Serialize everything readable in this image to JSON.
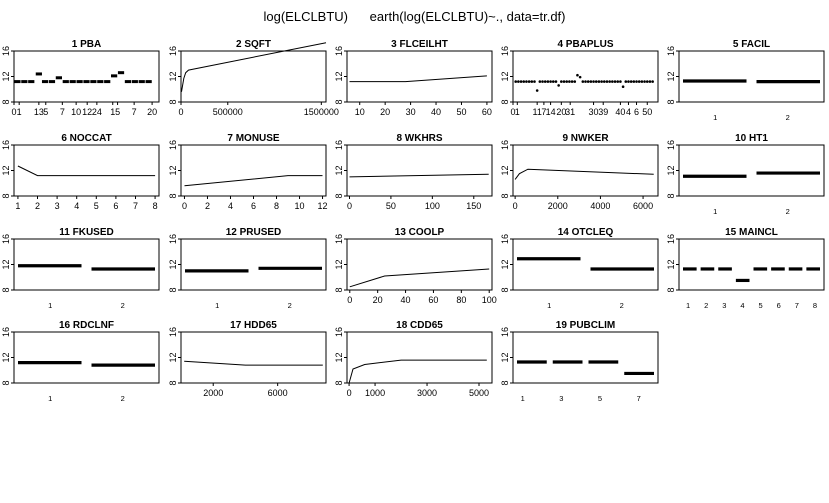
{
  "title": "log(ELCLBTU)      earth(log(ELCLBTU)~., data=tr.df)",
  "chart_data": [
    {
      "type": "scatter",
      "title": "1  PBA",
      "xlim": [
        0,
        21
      ],
      "ylim": [
        8,
        16
      ],
      "xticks": [
        {
          "v": 0,
          "t": "0"
        },
        {
          "v": 0.75,
          "t": "1"
        },
        {
          "v": 3.6,
          "t": "13"
        },
        {
          "v": 4.6,
          "t": "5"
        },
        {
          "v": 7,
          "t": "7"
        },
        {
          "v": 9,
          "t": "10"
        },
        {
          "v": 10.6,
          "t": "12"
        },
        {
          "v": 12,
          "t": "24"
        },
        {
          "v": 14.3,
          "t": "1"
        },
        {
          "v": 15,
          "t": "5"
        },
        {
          "v": 17.4,
          "t": "7"
        },
        {
          "v": 20,
          "t": "20"
        }
      ],
      "yticks": [
        8,
        12,
        16
      ],
      "marker": "dash",
      "x": [
        0.5,
        1.5,
        2.5,
        3.6,
        4.5,
        5.5,
        6.5,
        7.5,
        8.5,
        9.5,
        10.5,
        11.5,
        12.5,
        13.5,
        14.5,
        15.5,
        16.5,
        17.5,
        18.5,
        19.5
      ],
      "y": [
        11.2,
        11.2,
        11.2,
        12.4,
        11.2,
        11.2,
        11.8,
        11.2,
        11.2,
        11.2,
        11.2,
        11.2,
        11.2,
        11.2,
        12.1,
        12.6,
        11.2,
        11.2,
        11.2,
        11.2
      ]
    },
    {
      "type": "line",
      "title": "2  SQFT",
      "xlim": [
        0,
        1550000
      ],
      "ylim": [
        8,
        16
      ],
      "xticks": [
        {
          "v": 0,
          "t": "0"
        },
        {
          "v": 500000,
          "t": "500000"
        },
        {
          "v": 1500000,
          "t": "1500000"
        }
      ],
      "yticks": [
        8,
        12,
        16
      ],
      "x": [
        5000,
        30000,
        50000,
        80000,
        1550000
      ],
      "y": [
        9.6,
        11.7,
        12.6,
        13.0,
        17.3
      ]
    },
    {
      "type": "line",
      "title": "3  FLCEILHT",
      "xlim": [
        5,
        62
      ],
      "ylim": [
        8,
        16
      ],
      "xticks": [
        {
          "v": 10,
          "t": "10"
        },
        {
          "v": 20,
          "t": "20"
        },
        {
          "v": 30,
          "t": "30"
        },
        {
          "v": 40,
          "t": "40"
        },
        {
          "v": 50,
          "t": "50"
        },
        {
          "v": 60,
          "t": "60"
        }
      ],
      "yticks": [
        8,
        12,
        16
      ],
      "x": [
        6,
        28,
        60
      ],
      "y": [
        11.2,
        11.2,
        12.1
      ]
    },
    {
      "type": "scatter",
      "title": "4  PBAPLUS",
      "xlim": [
        0,
        54
      ],
      "ylim": [
        8,
        16
      ],
      "xticks": [
        {
          "v": 0,
          "t": "0"
        },
        {
          "v": 1.6,
          "t": "1"
        },
        {
          "v": 9,
          "t": "11"
        },
        {
          "v": 11.5,
          "t": "7"
        },
        {
          "v": 14,
          "t": "14"
        },
        {
          "v": 18,
          "t": "20"
        },
        {
          "v": 21.3,
          "t": "31"
        },
        {
          "v": 30,
          "t": "30"
        },
        {
          "v": 33.6,
          "t": "39"
        },
        {
          "v": 40,
          "t": "40"
        },
        {
          "v": 43,
          "t": "4"
        },
        {
          "v": 46,
          "t": "6"
        },
        {
          "v": 50,
          "t": "50"
        }
      ],
      "yticks": [
        8,
        12,
        16
      ],
      "marker": "dot",
      "x": [
        1,
        2,
        3,
        4,
        5,
        6,
        7,
        8,
        9,
        10,
        11,
        12,
        13,
        14,
        15,
        16,
        17,
        18,
        19,
        20,
        21,
        22,
        23,
        24,
        25,
        26,
        27,
        28,
        29,
        30,
        31,
        32,
        33,
        34,
        35,
        36,
        37,
        38,
        39,
        40,
        41,
        42,
        43,
        44,
        45,
        46,
        47,
        48,
        49,
        50,
        51,
        52
      ],
      "y": [
        11.2,
        11.2,
        11.2,
        11.2,
        11.2,
        11.2,
        11.2,
        11.2,
        9.8,
        11.2,
        11.2,
        11.2,
        11.2,
        11.2,
        11.2,
        11.2,
        10.6,
        11.2,
        11.2,
        11.2,
        11.2,
        11.2,
        11.2,
        12.2,
        11.9,
        11.2,
        11.2,
        11.2,
        11.2,
        11.2,
        11.2,
        11.2,
        11.2,
        11.2,
        11.2,
        11.2,
        11.2,
        11.2,
        11.2,
        11.2,
        10.4,
        11.2,
        11.2,
        11.2,
        11.2,
        11.2,
        11.2,
        11.2,
        11.2,
        11.2,
        11.2,
        11.2
      ]
    },
    {
      "type": "bar",
      "title": "5  FACIL",
      "xlim": [
        0.5,
        2.5
      ],
      "ylim": [
        8,
        16
      ],
      "xticks": [
        {
          "v": 1,
          "t": "1"
        },
        {
          "v": 2,
          "t": "2"
        }
      ],
      "yticks": [
        8,
        12,
        16
      ],
      "marker": "level",
      "x": [
        1,
        2
      ],
      "y": [
        11.3,
        11.2
      ]
    },
    {
      "type": "line",
      "title": "6  NOCCAT",
      "xlim": [
        0.8,
        8.2
      ],
      "ylim": [
        8,
        16
      ],
      "xticks": [
        {
          "v": 1,
          "t": "1"
        },
        {
          "v": 2,
          "t": "2"
        },
        {
          "v": 3,
          "t": "3"
        },
        {
          "v": 4,
          "t": "4"
        },
        {
          "v": 5,
          "t": "5"
        },
        {
          "v": 6,
          "t": "6"
        },
        {
          "v": 7,
          "t": "7"
        },
        {
          "v": 8,
          "t": "8"
        }
      ],
      "yticks": [
        8,
        12,
        16
      ],
      "x": [
        1,
        2,
        8
      ],
      "y": [
        12.7,
        11.2,
        11.2
      ]
    },
    {
      "type": "line",
      "title": "7  MONUSE",
      "xlim": [
        -0.3,
        12.3
      ],
      "ylim": [
        8,
        16
      ],
      "xticks": [
        {
          "v": 0,
          "t": "0"
        },
        {
          "v": 2,
          "t": "2"
        },
        {
          "v": 4,
          "t": "4"
        },
        {
          "v": 6,
          "t": "6"
        },
        {
          "v": 8,
          "t": "8"
        },
        {
          "v": 10,
          "t": "10"
        },
        {
          "v": 12,
          "t": "12"
        }
      ],
      "yticks": [
        8,
        12,
        16
      ],
      "x": [
        0,
        9,
        12
      ],
      "y": [
        9.6,
        11.2,
        11.2
      ]
    },
    {
      "type": "line",
      "title": "8  WKHRS",
      "xlim": [
        -3,
        172
      ],
      "ylim": [
        8,
        16
      ],
      "xticks": [
        {
          "v": 0,
          "t": "0"
        },
        {
          "v": 50,
          "t": "50"
        },
        {
          "v": 100,
          "t": "100"
        },
        {
          "v": 150,
          "t": "150"
        }
      ],
      "yticks": [
        8,
        12,
        16
      ],
      "x": [
        0,
        168
      ],
      "y": [
        11.0,
        11.4
      ]
    },
    {
      "type": "line",
      "title": "9  NWKER",
      "xlim": [
        -100,
        6700
      ],
      "ylim": [
        8,
        16
      ],
      "xticks": [
        {
          "v": 0,
          "t": "0"
        },
        {
          "v": 2000,
          "t": "2000"
        },
        {
          "v": 4000,
          "t": "4000"
        },
        {
          "v": 6000,
          "t": "6000"
        }
      ],
      "yticks": [
        8,
        12,
        16
      ],
      "x": [
        0,
        200,
        600,
        6500
      ],
      "y": [
        10.6,
        11.5,
        12.2,
        11.4
      ]
    },
    {
      "type": "bar",
      "title": "10  HT1",
      "xlim": [
        0.5,
        2.5
      ],
      "ylim": [
        8,
        16
      ],
      "xticks": [
        {
          "v": 1,
          "t": "1"
        },
        {
          "v": 2,
          "t": "2"
        }
      ],
      "yticks": [
        8,
        12,
        16
      ],
      "marker": "level",
      "x": [
        1,
        2
      ],
      "y": [
        11.1,
        11.6
      ]
    },
    {
      "type": "bar",
      "title": "11  FKUSED",
      "xlim": [
        0.5,
        2.5
      ],
      "ylim": [
        8,
        16
      ],
      "xticks": [
        {
          "v": 1,
          "t": "1"
        },
        {
          "v": 2,
          "t": "2"
        }
      ],
      "yticks": [
        8,
        12,
        16
      ],
      "marker": "level",
      "x": [
        1,
        2
      ],
      "y": [
        11.8,
        11.3
      ]
    },
    {
      "type": "bar",
      "title": "12  PRUSED",
      "xlim": [
        0.5,
        2.5
      ],
      "ylim": [
        8,
        16
      ],
      "xticks": [
        {
          "v": 1,
          "t": "1"
        },
        {
          "v": 2,
          "t": "2"
        }
      ],
      "yticks": [
        8,
        12,
        16
      ],
      "marker": "level",
      "x": [
        1,
        2
      ],
      "y": [
        11.0,
        11.4
      ]
    },
    {
      "type": "line",
      "title": "13  COOLP",
      "xlim": [
        -2,
        102
      ],
      "ylim": [
        8,
        16
      ],
      "xticks": [
        {
          "v": 0,
          "t": "0"
        },
        {
          "v": 20,
          "t": "20"
        },
        {
          "v": 40,
          "t": "40"
        },
        {
          "v": 60,
          "t": "60"
        },
        {
          "v": 80,
          "t": "80"
        },
        {
          "v": 100,
          "t": "100"
        }
      ],
      "yticks": [
        8,
        12,
        16
      ],
      "x": [
        0,
        25,
        100
      ],
      "y": [
        8.5,
        10.2,
        11.3
      ]
    },
    {
      "type": "bar",
      "title": "14  OTCLEQ",
      "xlim": [
        0.5,
        2.5
      ],
      "ylim": [
        8,
        16
      ],
      "xticks": [
        {
          "v": 1,
          "t": "1"
        },
        {
          "v": 2,
          "t": "2"
        }
      ],
      "yticks": [
        8,
        12,
        16
      ],
      "marker": "level",
      "x": [
        1,
        2
      ],
      "y": [
        12.9,
        11.3
      ]
    },
    {
      "type": "bar",
      "title": "15  MAINCL",
      "xlim": [
        0.5,
        8.5
      ],
      "ylim": [
        8,
        16
      ],
      "xticks": [
        {
          "v": 1,
          "t": "1"
        },
        {
          "v": 2,
          "t": "2"
        },
        {
          "v": 3,
          "t": "3"
        },
        {
          "v": 4,
          "t": "4"
        },
        {
          "v": 5,
          "t": "5"
        },
        {
          "v": 6,
          "t": "6"
        },
        {
          "v": 7,
          "t": "7"
        },
        {
          "v": 8,
          "t": "8"
        }
      ],
      "yticks": [
        8,
        12,
        16
      ],
      "marker": "level",
      "x": [
        1,
        2,
        3,
        4,
        5,
        6,
        7,
        8
      ],
      "y": [
        11.3,
        11.3,
        11.3,
        9.5,
        11.3,
        11.3,
        11.3,
        11.3
      ]
    },
    {
      "type": "bar",
      "title": "16  RDCLNF",
      "xlim": [
        0.5,
        2.5
      ],
      "ylim": [
        8,
        16
      ],
      "xticks": [
        {
          "v": 1,
          "t": "1"
        },
        {
          "v": 2,
          "t": "2"
        }
      ],
      "yticks": [
        8,
        12,
        16
      ],
      "marker": "level",
      "x": [
        1,
        2
      ],
      "y": [
        11.2,
        10.8
      ]
    },
    {
      "type": "line",
      "title": "17  HDD65",
      "xlim": [
        0,
        9000
      ],
      "ylim": [
        8,
        16
      ],
      "xticks": [
        {
          "v": 2000,
          "t": "2000"
        },
        {
          "v": 6000,
          "t": "6000"
        }
      ],
      "yticks": [
        8,
        12,
        16
      ],
      "x": [
        200,
        4000,
        8800
      ],
      "y": [
        11.4,
        10.8,
        10.8
      ]
    },
    {
      "type": "line",
      "title": "18  CDD65",
      "xlim": [
        -80,
        5500
      ],
      "ylim": [
        8,
        16
      ],
      "xticks": [
        {
          "v": 0,
          "t": "0"
        },
        {
          "v": 1000,
          "t": "1000"
        },
        {
          "v": 3000,
          "t": "3000"
        },
        {
          "v": 5000,
          "t": "5000"
        }
      ],
      "yticks": [
        8,
        12,
        16
      ],
      "x": [
        0,
        150,
        600,
        2000,
        5300
      ],
      "y": [
        8.0,
        10.2,
        10.9,
        11.6,
        11.6
      ]
    },
    {
      "type": "bar",
      "title": "19  PUBCLIM",
      "xlim": [
        0.5,
        8
      ],
      "ylim": [
        8,
        16
      ],
      "xticks": [
        {
          "v": 1,
          "t": "1"
        },
        {
          "v": 3,
          "t": "3"
        },
        {
          "v": 5,
          "t": "5"
        },
        {
          "v": 7,
          "t": "7"
        }
      ],
      "yticks": [
        8,
        12,
        16
      ],
      "marker": "level",
      "x": [
        1,
        3,
        5,
        7
      ],
      "y": [
        11.3,
        11.3,
        11.3,
        9.5
      ]
    }
  ]
}
